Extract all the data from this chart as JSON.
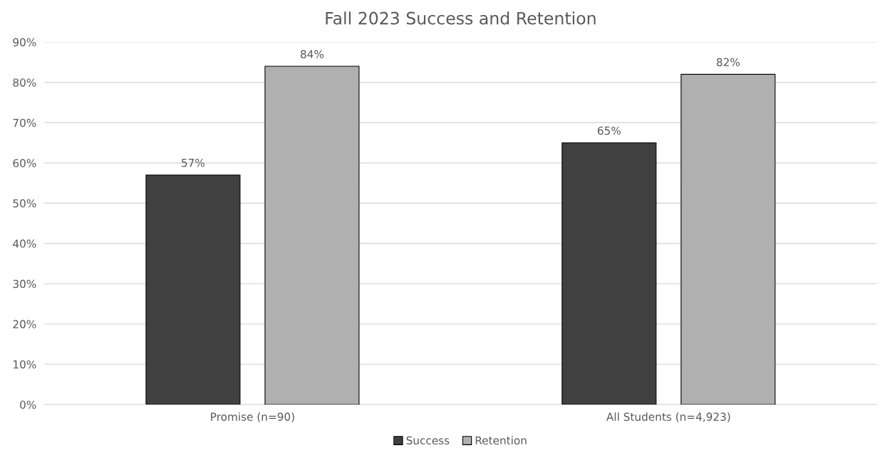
{
  "chart_data": {
    "type": "bar",
    "title": "Fall 2023 Success and Retention",
    "categories": [
      "Promise (n=90)",
      "All Students (n=4,923)"
    ],
    "series": [
      {
        "name": "Success",
        "color": "#404040",
        "values": [
          57,
          65
        ],
        "value_labels": [
          "57%",
          "65%"
        ]
      },
      {
        "name": "Retention",
        "color": "#b0b0b0",
        "values": [
          84,
          82
        ],
        "value_labels": [
          "84%",
          "82%"
        ]
      }
    ],
    "ylim": [
      0,
      90
    ],
    "yticks": [
      {
        "value": 0,
        "label": "0%"
      },
      {
        "value": 10,
        "label": "10%"
      },
      {
        "value": 20,
        "label": "20%"
      },
      {
        "value": 30,
        "label": "30%"
      },
      {
        "value": 40,
        "label": "40%"
      },
      {
        "value": 50,
        "label": "50%"
      },
      {
        "value": 60,
        "label": "60%"
      },
      {
        "value": 70,
        "label": "70%"
      },
      {
        "value": 80,
        "label": "80%"
      },
      {
        "value": 90,
        "label": "90%"
      }
    ],
    "grid": "y",
    "legend": "bottom"
  }
}
